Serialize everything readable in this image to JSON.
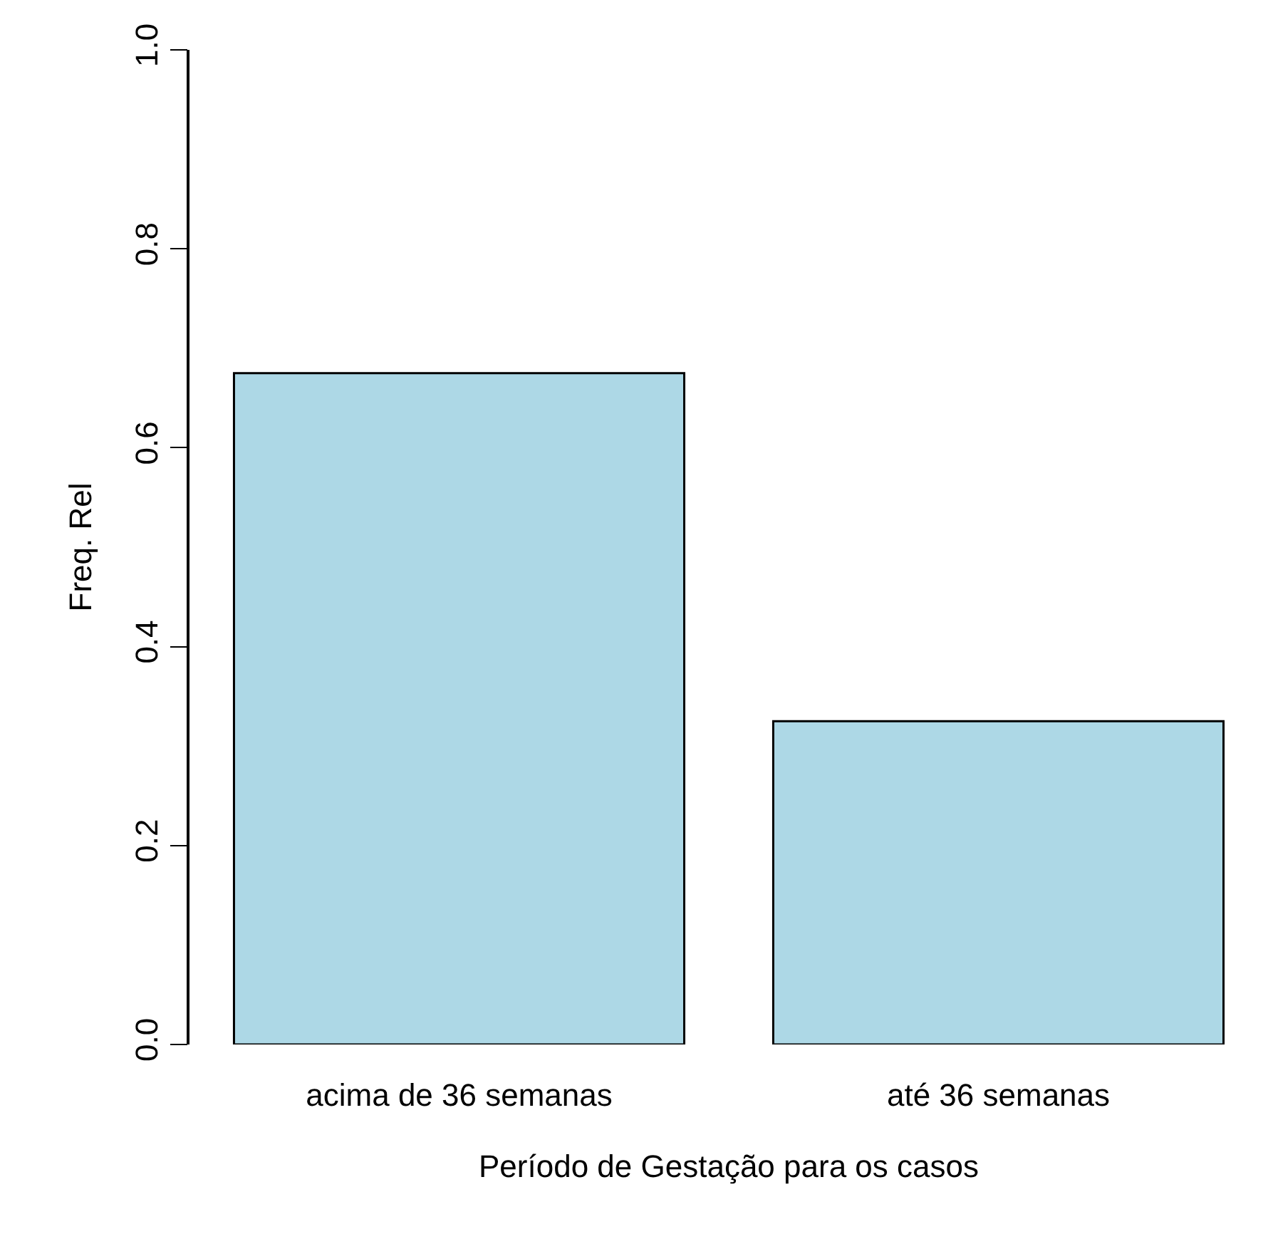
{
  "chart_data": {
    "type": "bar",
    "xlabel": "Período de Gestação para os casos",
    "ylabel": "Freq. Rel",
    "categories": [
      "acima de 36 semanas",
      "até 36 semanas"
    ],
    "values": [
      0.675,
      0.325
    ],
    "color": "#add8e6",
    "ylim": [
      0,
      1
    ],
    "yticks": [
      {
        "value": 0,
        "label": "0.0"
      },
      0.2,
      0.4,
      0.6,
      0.8,
      {
        "value": 1,
        "label": "1.0"
      }
    ]
  }
}
